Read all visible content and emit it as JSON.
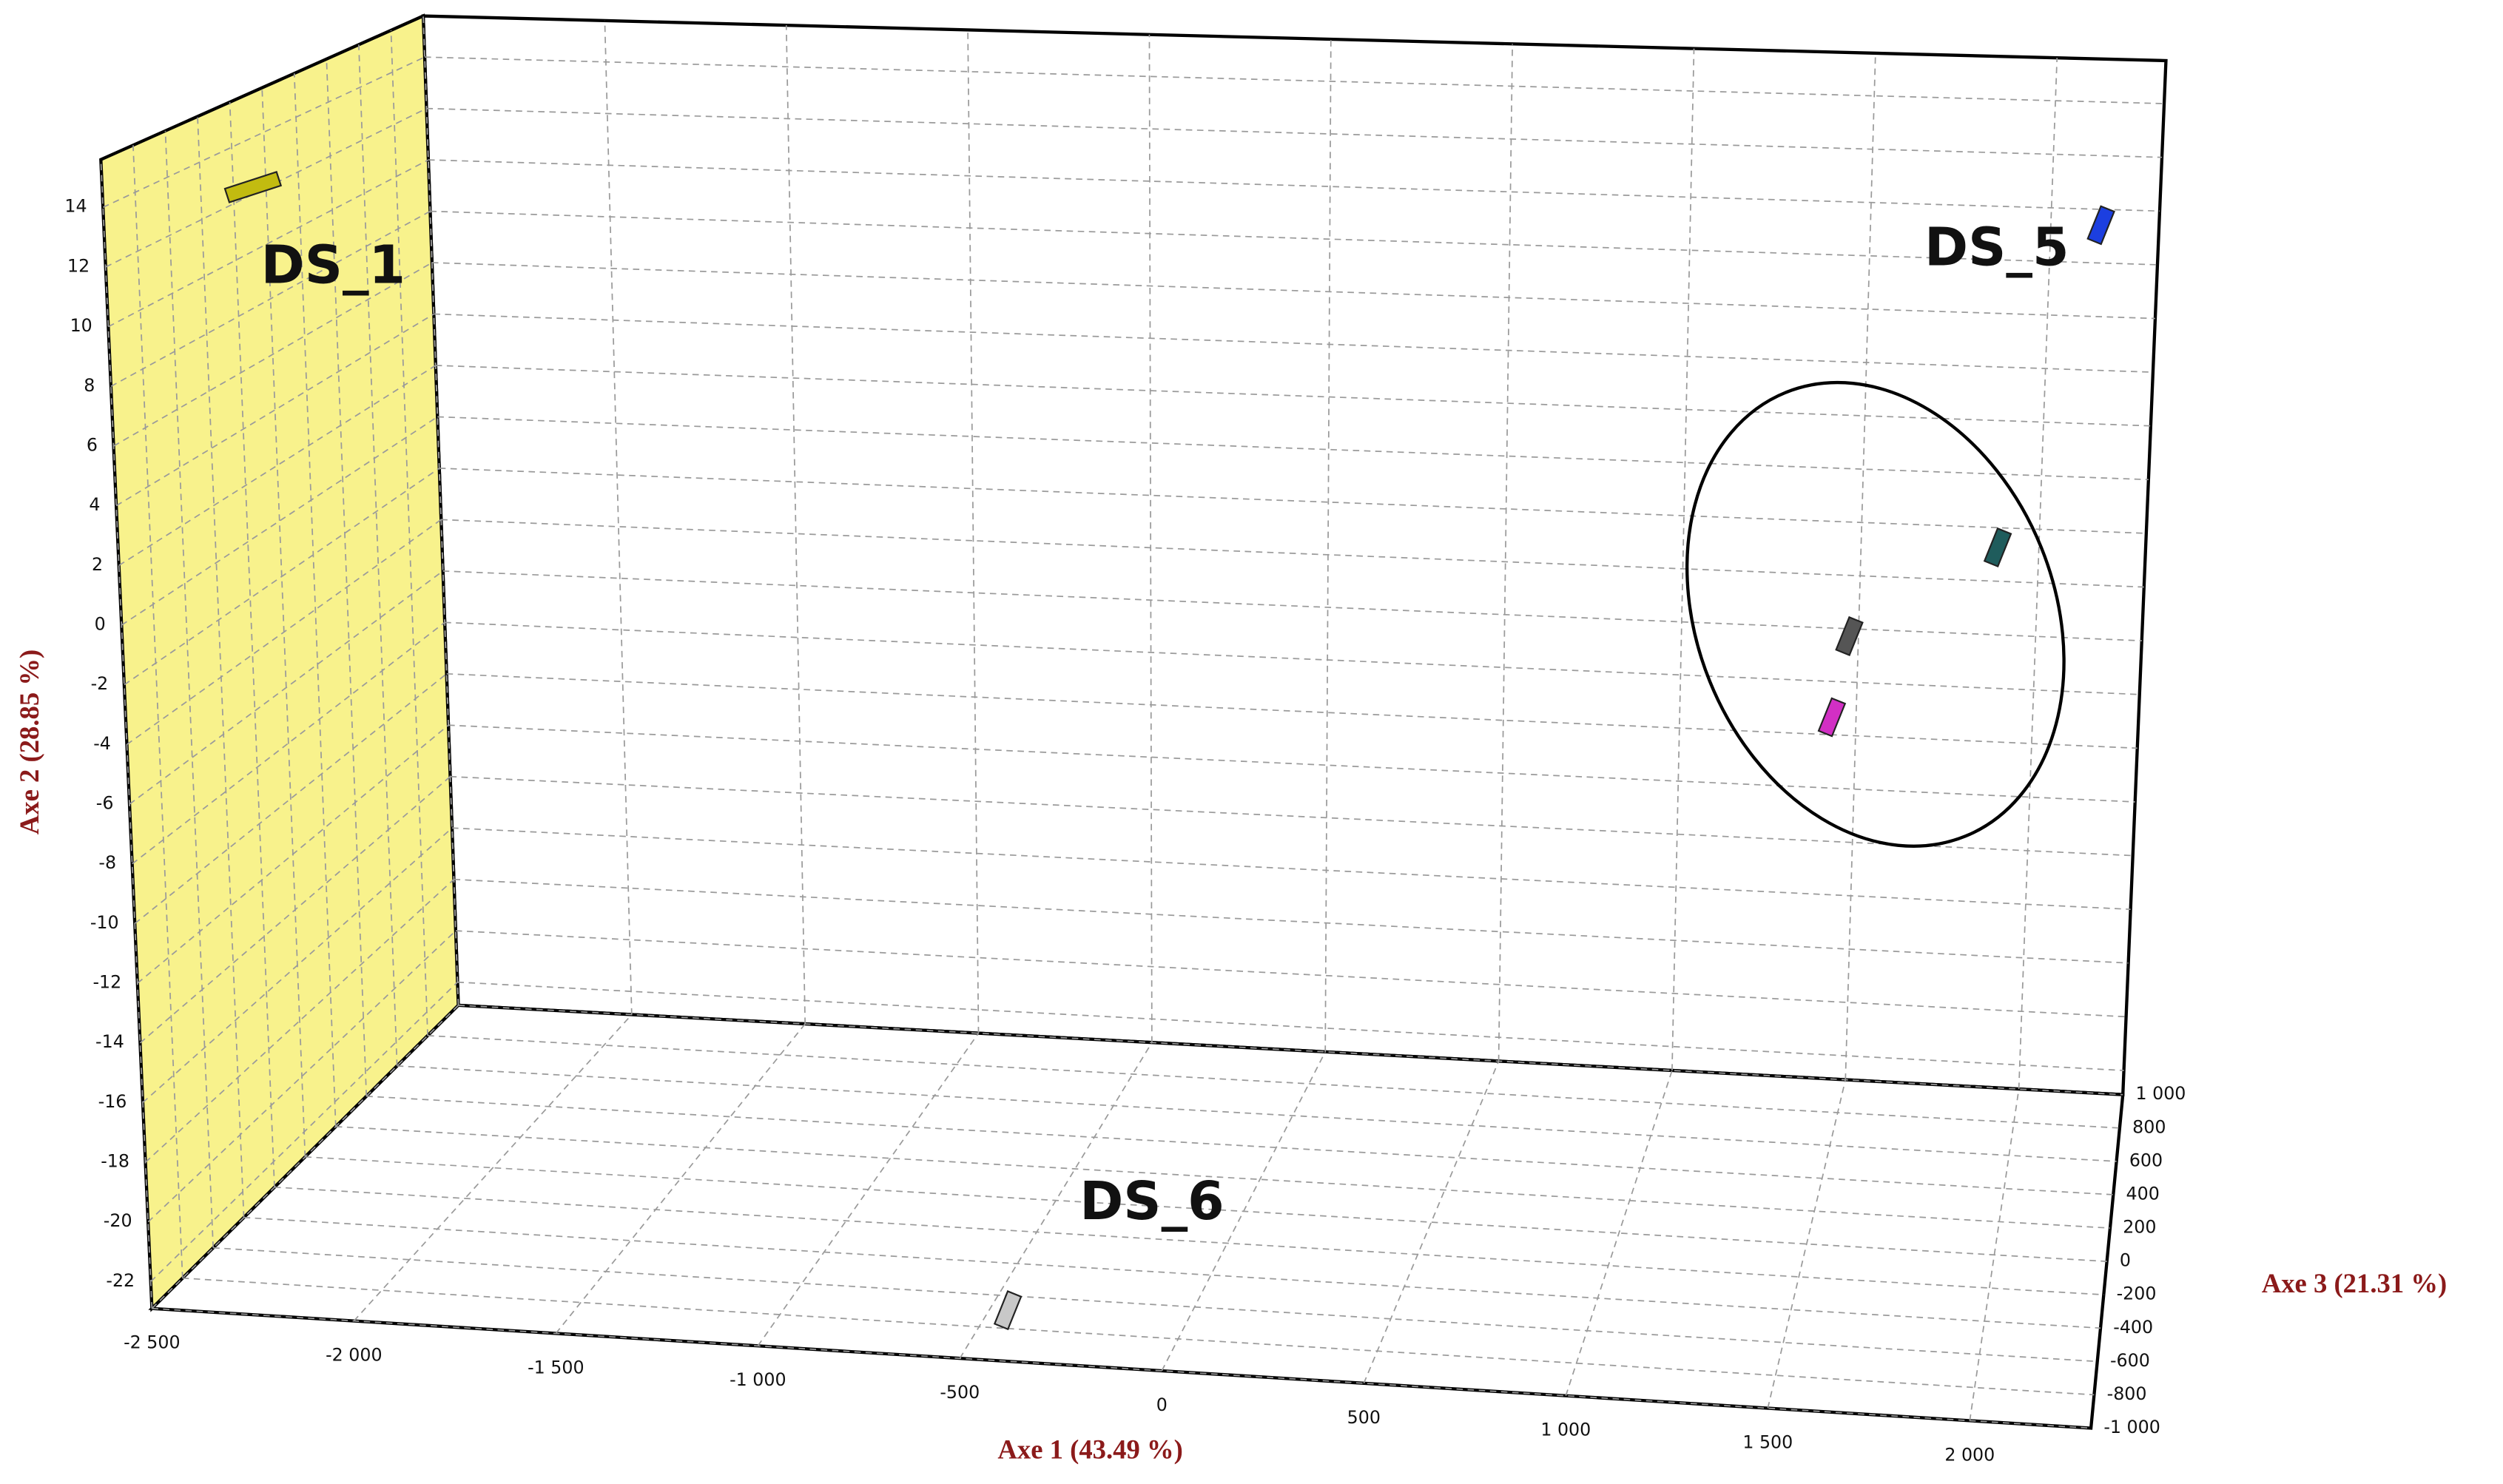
{
  "chart_data": {
    "type": "scatter3d",
    "xlabel": "Axe 1 (43.49 %)",
    "ylabel": "Axe 2 (28.85 %)",
    "zlabel": "Axe 3 (21.31 %)",
    "xlim": [
      -2500,
      2300
    ],
    "ylim": [
      -22.9,
      15.6
    ],
    "zlim": [
      -1000,
      1000
    ],
    "xticks": [
      {
        "value": -2500,
        "label": "-2 500"
      },
      {
        "value": -2000,
        "label": "-2 000"
      },
      {
        "value": -1500,
        "label": "-1 500"
      },
      {
        "value": -1000,
        "label": "-1 000"
      },
      -500,
      0,
      500,
      {
        "value": 1000,
        "label": "1 000"
      },
      {
        "value": 1500,
        "label": "1 500"
      },
      {
        "value": 2000,
        "label": "2 000"
      }
    ],
    "yticks": [
      -22,
      -20,
      -18,
      -16,
      -14,
      -12,
      -10,
      -8,
      -6,
      -4,
      -2,
      0,
      2,
      4,
      6,
      8,
      10,
      12,
      14
    ],
    "zticks": [
      {
        "value": -1000,
        "label": "-1 000"
      },
      -800,
      -600,
      -400,
      -200,
      0,
      200,
      400,
      600,
      800,
      {
        "value": 1000,
        "label": "1 000"
      }
    ],
    "grid": true,
    "points": [
      {
        "label": "DS_1",
        "x": -2260,
        "y": 14,
        "z": -660,
        "color": "#c2bb10"
      },
      {
        "label": "DS_5",
        "x": 2250,
        "y": 12.5,
        "z": 280,
        "color": "#1c3fe0"
      },
      {
        "x": 2020,
        "y": 2.1,
        "z": 0,
        "color": "#1f5c5c"
      },
      {
        "x": 1628,
        "y": -1.3,
        "z": 0,
        "color": "#555555"
      },
      {
        "x": 1580,
        "y": -4.2,
        "z": 0,
        "color": "#d22fc4"
      },
      {
        "label": "DS_6",
        "x": -436,
        "y": -22.5,
        "z": -760,
        "color": "#c8c8c8"
      }
    ]
  }
}
